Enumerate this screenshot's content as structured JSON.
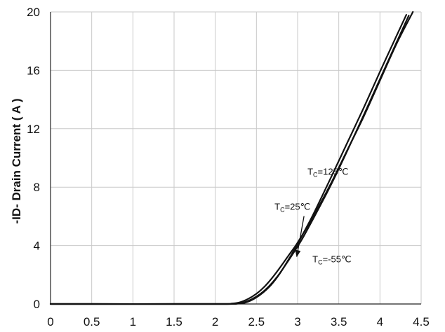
{
  "chart_data": {
    "type": "line",
    "title": "",
    "xlabel": "",
    "ylabel": "-ID- Drain Current ( A )",
    "xlim": [
      0,
      4.5
    ],
    "ylim": [
      0,
      20
    ],
    "x_ticks": [
      0,
      0.5,
      1,
      1.5,
      2,
      2.5,
      3,
      3.5,
      4,
      4.5
    ],
    "x_tick_labels": [
      "0",
      "0.5",
      "1",
      "1.5",
      "2",
      "2.5",
      "3",
      "3.5",
      "4",
      "4.5"
    ],
    "y_ticks": [
      0,
      4,
      8,
      12,
      16,
      20
    ],
    "y_tick_labels": [
      "0",
      "4",
      "8",
      "12",
      "16",
      "20"
    ],
    "grid": true,
    "series": [
      {
        "name": "TC=125℃",
        "x": [
          0,
          2.0,
          2.2,
          2.3,
          2.4,
          2.5,
          2.6,
          2.7,
          2.8,
          2.9,
          3.0,
          3.2,
          3.4,
          3.6,
          3.8,
          4.0,
          4.2,
          4.4
        ],
        "y": [
          0,
          0,
          0.03,
          0.12,
          0.35,
          0.7,
          1.2,
          1.85,
          2.6,
          3.4,
          4.2,
          6.1,
          8.2,
          10.5,
          12.8,
          15.3,
          17.8,
          20.0
        ]
      },
      {
        "name": "TC=25℃",
        "x": [
          0,
          2.0,
          2.25,
          2.35,
          2.45,
          2.55,
          2.65,
          2.75,
          2.85,
          2.95,
          3.05,
          3.2,
          3.4,
          3.6,
          3.8,
          4.0,
          4.2,
          4.35
        ],
        "y": [
          0,
          0,
          0.03,
          0.12,
          0.35,
          0.7,
          1.2,
          1.85,
          2.65,
          3.5,
          4.4,
          5.95,
          8.1,
          10.45,
          12.9,
          15.4,
          17.9,
          19.75
        ]
      },
      {
        "name": "TC=-55℃",
        "x": [
          0,
          2.0,
          2.28,
          2.38,
          2.48,
          2.58,
          2.68,
          2.78,
          2.88,
          2.98,
          3.08,
          3.2,
          3.4,
          3.6,
          3.8,
          4.0,
          4.2,
          4.32
        ],
        "y": [
          0,
          0,
          0.03,
          0.12,
          0.38,
          0.78,
          1.32,
          2.05,
          2.95,
          3.9,
          4.95,
          6.25,
          8.6,
          11.0,
          13.4,
          15.9,
          18.35,
          19.8
        ]
      }
    ],
    "annotations": [
      {
        "main": "T",
        "sub": "C",
        "rest": "=125℃",
        "x": 3.12,
        "y": 8.85
      },
      {
        "main": "T",
        "sub": "C",
        "rest": "=25℃",
        "x": 2.72,
        "y": 6.45,
        "arrow_to": [
          2.99,
          3.25
        ]
      },
      {
        "main": "T",
        "sub": "C",
        "rest": "=-55℃",
        "x": 3.18,
        "y": 2.85
      }
    ],
    "colors": {
      "line": "#111111",
      "grid": "#c9c9c9",
      "axis": "#222222"
    }
  }
}
